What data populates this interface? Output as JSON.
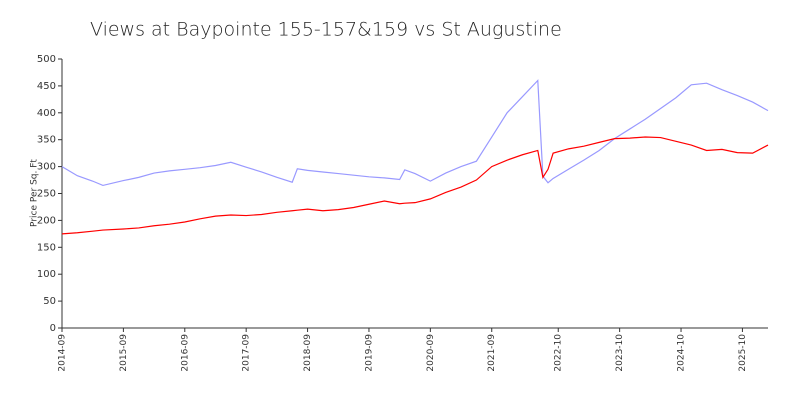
{
  "chart_data": {
    "type": "line",
    "title": "Views at Baypointe 155-157&159 vs St Augustine",
    "y_label": "Price Per Sq. Ft",
    "x": [
      "2014-09",
      "2014-12",
      "2015-03",
      "2015-05",
      "2015-09",
      "2015-12",
      "2016-03",
      "2016-06",
      "2016-09",
      "2016-12",
      "2017-03",
      "2017-06",
      "2017-09",
      "2017-12",
      "2018-03",
      "2018-06",
      "2018-07",
      "2018-09",
      "2018-12",
      "2019-03",
      "2019-06",
      "2019-09",
      "2019-12",
      "2020-03",
      "2020-04",
      "2020-06",
      "2020-09",
      "2020-12",
      "2021-03",
      "2021-06",
      "2021-09",
      "2021-12",
      "2022-03",
      "2022-06",
      "2022-07",
      "2022-08",
      "2022-09",
      "2022-12",
      "2023-03",
      "2023-06",
      "2023-09",
      "2023-12",
      "2024-03",
      "2024-06",
      "2024-09",
      "2024-12",
      "2025-03",
      "2025-06",
      "2025-09",
      "2025-12",
      "2026-03"
    ],
    "series": [
      {
        "color": "#9999ff",
        "values": [
          300,
          283,
          273,
          265,
          274,
          280,
          288,
          292,
          295,
          298,
          302,
          308,
          299,
          290,
          280,
          271,
          296,
          293,
          290,
          287,
          284,
          281,
          279,
          276,
          294,
          287,
          273,
          288,
          300,
          310,
          355,
          400,
          430,
          460,
          282,
          270,
          278,
          295,
          312,
          330,
          352,
          370,
          388,
          408,
          428,
          452,
          455,
          443,
          432,
          420,
          404
        ]
      },
      {
        "color": "#ff0000",
        "values": [
          175,
          177,
          180,
          182,
          184,
          186,
          190,
          193,
          197,
          203,
          208,
          210,
          209,
          211,
          215,
          218,
          219,
          221,
          218,
          220,
          224,
          230,
          236,
          231,
          232,
          233,
          240,
          252,
          262,
          275,
          300,
          312,
          322,
          330,
          280,
          295,
          325,
          333,
          338,
          345,
          352,
          353,
          355,
          354,
          347,
          340,
          330,
          332,
          326,
          325,
          340
        ]
      }
    ],
    "xlim": [
      "2014-09",
      "2026-03"
    ],
    "xticks": [
      "2014-09",
      "2015-09",
      "2016-09",
      "2017-09",
      "2018-09",
      "2019-09",
      "2020-09",
      "2021-09",
      "2022-10",
      "2023-10",
      "2024-10",
      "2025-10"
    ],
    "ylim": [
      0,
      500
    ],
    "yticks": [
      0,
      50,
      100,
      150,
      200,
      250,
      300,
      350,
      400,
      450,
      500
    ]
  }
}
